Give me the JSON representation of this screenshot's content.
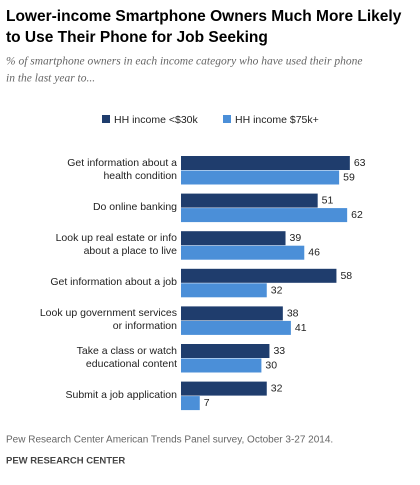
{
  "chart_data": {
    "type": "bar",
    "orientation": "horizontal",
    "title": [
      "Lower-income Smartphone  Owners Much More Likely",
      "to Use Their Phone for Job Seeking"
    ],
    "subtitle": [
      "% of smartphone owners in each income category who have used their phone",
      "in the last year to..."
    ],
    "categories": [
      [
        "Get information about a",
        "health condition"
      ],
      [
        "Do online banking"
      ],
      [
        "Look up real estate or info",
        "about a place to live"
      ],
      [
        "Get information about a job"
      ],
      [
        "Look up government services",
        "or information"
      ],
      [
        "Take a class or watch",
        "educational content"
      ],
      [
        "Submit a job application"
      ]
    ],
    "series": [
      {
        "name": "HH income <$30k",
        "color": "#1f3d6d",
        "values": [
          63,
          51,
          39,
          58,
          38,
          33,
          32
        ]
      },
      {
        "name": "HH income $75k+",
        "color": "#4b8fd8",
        "values": [
          59,
          62,
          46,
          32,
          41,
          30,
          7
        ]
      }
    ],
    "xlim": [
      0,
      100
    ],
    "source": "Pew Research Center American Trends Panel survey, October 3-27 2014.",
    "note": "PEW RESEARCH CENTER"
  }
}
